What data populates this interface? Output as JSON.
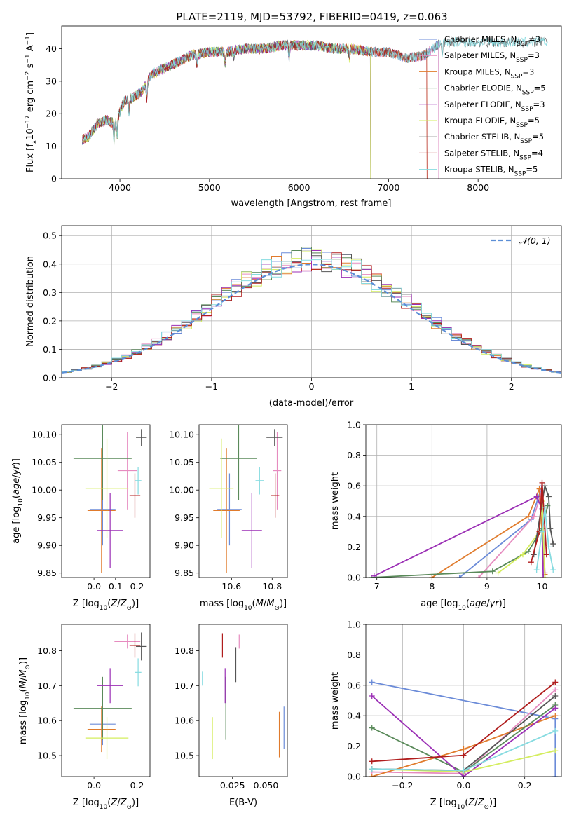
{
  "title": "PLATE=2119, MJD=53792, FIBERID=0419, z=0.063",
  "colors": {
    "Chabrier MILES": "#6b8bd8",
    "Salpeter MILES": "#e68bbf",
    "Kroupa MILES": "#e07b2c",
    "Chabrier ELODIE": "#5a8a5a",
    "Salpeter ELODIE": "#9b2fb5",
    "Kroupa ELODIE": "#d4ed5e",
    "Chabrier STELIB": "#555555",
    "Salpeter STELIB": "#b01d1d",
    "Kroupa STELIB": "#86dbe0",
    "gauss": "#5b8ed6"
  },
  "chart_data": [
    {
      "id": "spectrum",
      "type": "line",
      "xlabel": "wavelength [Angstrom, rest frame]",
      "ylabel": "Flux [f_λ 10^-17 erg cm^-2 s^-1 A^-1]",
      "xlim": [
        3350,
        8930
      ],
      "ylim": [
        0,
        47
      ],
      "xticks": [
        4000,
        5000,
        6000,
        7000,
        8000
      ],
      "yticks": [
        0,
        10,
        20,
        30,
        40
      ],
      "legend_position": "right",
      "series": [
        {
          "name": "Chabrier MILES",
          "nssp": "3"
        },
        {
          "name": "Salpeter MILES",
          "nssp": "3"
        },
        {
          "name": "Kroupa MILES",
          "nssp": "3"
        },
        {
          "name": "Chabrier ELODIE",
          "nssp": "5"
        },
        {
          "name": "Salpeter ELODIE",
          "nssp": "3"
        },
        {
          "name": "Kroupa ELODIE",
          "nssp": "5"
        },
        {
          "name": "Chabrier STELIB",
          "nssp": "5"
        },
        {
          "name": "Salpeter STELIB",
          "nssp": "4"
        },
        {
          "name": "Kroupa STELIB",
          "nssp": "5"
        }
      ],
      "continuum": {
        "x": [
          3580,
          3650,
          3750,
          3850,
          3950,
          4050,
          4150,
          4250,
          4350,
          4500,
          4650,
          4800,
          5000,
          5200,
          5400,
          5600,
          5800,
          6000,
          6200,
          6400,
          6600,
          6800,
          7000,
          7200,
          7400,
          7500,
          7600
        ],
        "y": [
          12,
          13,
          17,
          18,
          17,
          24,
          25,
          27,
          32,
          34,
          36,
          38,
          39,
          39,
          40,
          40,
          41,
          41,
          41,
          40,
          40,
          39,
          39,
          37,
          38,
          40,
          42
        ]
      },
      "endpoints": {
        "Chabrier MILES": 7560,
        "Salpeter MILES": 7560,
        "Kroupa MILES": 7430,
        "Chabrier ELODIE": 6800,
        "Salpeter ELODIE": 6800,
        "Kroupa ELODIE": 6800,
        "Chabrier STELIB": 8780,
        "Salpeter STELIB": 7430,
        "Kroupa STELIB": 8780
      }
    },
    {
      "id": "residuals",
      "type": "histogram",
      "xlabel": "(data-model)/error",
      "ylabel": "Normed distribution",
      "xlim": [
        -2.5,
        2.5
      ],
      "ylim": [
        0,
        0.535
      ],
      "xticks": [
        -2,
        -1,
        0,
        1,
        2
      ],
      "yticks": [
        0.0,
        0.1,
        0.2,
        0.3,
        0.4,
        0.5
      ],
      "bin_width": 0.1,
      "grid": true,
      "legend": [
        {
          "label": "𝒩(0, 1)",
          "style": "dashed"
        }
      ],
      "legend_position": "top-right"
    },
    {
      "id": "age_vs_Z",
      "type": "errorbar",
      "xlabel": "Z [log10(Z/Z⊙)]",
      "ylabel": "age  [log10(age/yr)]",
      "xlim": [
        -0.15,
        0.26
      ],
      "ylim": [
        9.842,
        10.118
      ],
      "xticks": [
        0.0,
        0.1,
        0.2
      ],
      "yticks": [
        9.85,
        9.9,
        9.95,
        10.0,
        10.05,
        10.1
      ],
      "points": [
        {
          "series": "Chabrier MILES",
          "x": 0.04,
          "xerr": 0.06,
          "y": 9.965,
          "yerr": 0.065
        },
        {
          "series": "Salpeter MILES",
          "x": 0.155,
          "xerr": 0.045,
          "y": 10.035,
          "yerr": 0.07
        },
        {
          "series": "Kroupa MILES",
          "x": 0.035,
          "xerr": 0.065,
          "y": 9.963,
          "yerr": 0.113
        },
        {
          "series": "Chabrier ELODIE",
          "x": 0.04,
          "xerr": 0.135,
          "y": 10.057,
          "yerr": 0.075
        },
        {
          "series": "Salpeter ELODIE",
          "x": 0.075,
          "xerr": 0.06,
          "y": 9.927,
          "yerr": 0.068
        },
        {
          "series": "Kroupa ELODIE",
          "x": 0.06,
          "xerr": 0.1,
          "y": 10.003,
          "yerr": 0.09
        },
        {
          "series": "Chabrier STELIB",
          "x": 0.22,
          "xerr": 0.025,
          "y": 10.095,
          "yerr": 0.015
        },
        {
          "series": "Salpeter STELIB",
          "x": 0.19,
          "xerr": 0.025,
          "y": 9.99,
          "yerr": 0.04
        },
        {
          "series": "Kroupa STELIB",
          "x": 0.205,
          "xerr": 0.015,
          "y": 10.017,
          "yerr": 0.025
        }
      ]
    },
    {
      "id": "age_vs_mass",
      "type": "errorbar",
      "xlabel": "mass [log10(M/M⊙)]",
      "ylabel": "",
      "xlim": [
        10.44,
        10.875
      ],
      "ylim": [
        9.842,
        10.118
      ],
      "xticks": [
        10.6,
        10.8
      ],
      "yticks": [
        9.85,
        9.9,
        9.95,
        10.0,
        10.05,
        10.1
      ],
      "points": [
        {
          "series": "Chabrier MILES",
          "x": 10.59,
          "xerr": 0.06,
          "y": 9.965,
          "yerr": 0.065
        },
        {
          "series": "Salpeter MILES",
          "x": 10.825,
          "xerr": 0.02,
          "y": 10.035,
          "yerr": 0.07
        },
        {
          "series": "Kroupa MILES",
          "x": 10.575,
          "xerr": 0.065,
          "y": 9.963,
          "yerr": 0.113
        },
        {
          "series": "Chabrier ELODIE",
          "x": 10.635,
          "xerr": 0.09,
          "y": 10.057,
          "yerr": 0.075
        },
        {
          "series": "Salpeter ELODIE",
          "x": 10.7,
          "xerr": 0.05,
          "y": 9.927,
          "yerr": 0.068
        },
        {
          "series": "Kroupa ELODIE",
          "x": 10.55,
          "xerr": 0.06,
          "y": 10.003,
          "yerr": 0.09
        },
        {
          "series": "Chabrier STELIB",
          "x": 10.812,
          "xerr": 0.04,
          "y": 10.095,
          "yerr": 0.015
        },
        {
          "series": "Salpeter STELIB",
          "x": 10.815,
          "xerr": 0.02,
          "y": 9.99,
          "yerr": 0.04
        },
        {
          "series": "Kroupa STELIB",
          "x": 10.738,
          "xerr": 0.02,
          "y": 10.017,
          "yerr": 0.025
        }
      ]
    },
    {
      "id": "weight_vs_age",
      "type": "line",
      "xlabel": "age  [log10(age/yr)]",
      "ylabel": "mass weight",
      "xlim": [
        6.8,
        10.35
      ],
      "ylim": [
        0,
        1.0
      ],
      "xticks": [
        7,
        8,
        9,
        10
      ],
      "yticks": [
        0.0,
        0.2,
        0.4,
        0.6,
        0.8,
        1.0
      ],
      "grid": true,
      "series": [
        {
          "name": "Chabrier MILES",
          "x": [
            8.5,
            9.8,
            10.0,
            10.05
          ],
          "y": [
            0.0,
            0.38,
            0.6,
            0.02
          ]
        },
        {
          "name": "Salpeter MILES",
          "x": [
            8.85,
            9.85,
            10.0,
            10.05
          ],
          "y": [
            0.0,
            0.4,
            0.57,
            0.03
          ]
        },
        {
          "name": "Kroupa MILES",
          "x": [
            8.0,
            9.75,
            9.95,
            10.05
          ],
          "y": [
            0.0,
            0.4,
            0.58,
            0.02
          ]
        },
        {
          "name": "Chabrier ELODIE",
          "x": [
            6.9,
            9.1,
            9.75,
            10.0,
            10.1
          ],
          "y": [
            0.0,
            0.04,
            0.17,
            0.32,
            0.47
          ]
        },
        {
          "name": "Salpeter ELODIE",
          "x": [
            6.95,
            9.9,
            10.0,
            10.02
          ],
          "y": [
            0.01,
            0.53,
            0.45,
            0.0
          ]
        },
        {
          "name": "Kroupa ELODIE",
          "x": [
            9.2,
            9.65,
            9.95,
            10.0,
            10.05
          ],
          "y": [
            0.03,
            0.15,
            0.3,
            0.5,
            0.0
          ]
        },
        {
          "name": "Chabrier STELIB",
          "x": [
            9.85,
            10.05,
            10.12,
            10.15,
            10.2
          ],
          "y": [
            0.15,
            0.6,
            0.53,
            0.32,
            0.22
          ]
        },
        {
          "name": "Salpeter STELIB",
          "x": [
            9.8,
            9.95,
            10.0,
            10.08
          ],
          "y": [
            0.1,
            0.3,
            0.62,
            0.15
          ]
        },
        {
          "name": "Kroupa STELIB",
          "x": [
            9.9,
            10.0,
            10.05,
            10.12,
            10.2
          ],
          "y": [
            0.05,
            0.3,
            0.46,
            0.2,
            0.05
          ]
        }
      ]
    },
    {
      "id": "mass_vs_Z",
      "type": "errorbar",
      "xlabel": "Z [log10(Z/Z⊙)]",
      "ylabel": "mass [log10(M/M⊙)]",
      "xlim": [
        -0.15,
        0.26
      ],
      "ylim": [
        10.44,
        10.875
      ],
      "xticks": [
        0.0,
        0.2
      ],
      "yticks": [
        10.5,
        10.6,
        10.7,
        10.8
      ],
      "points": [
        {
          "series": "Chabrier MILES",
          "x": 0.04,
          "xerr": 0.06,
          "y": 10.59,
          "yerr": 0.06
        },
        {
          "series": "Salpeter MILES",
          "x": 0.155,
          "xerr": 0.06,
          "y": 10.826,
          "yerr": 0.02
        },
        {
          "series": "Kroupa MILES",
          "x": 0.035,
          "xerr": 0.065,
          "y": 10.575,
          "yerr": 0.065
        },
        {
          "series": "Chabrier ELODIE",
          "x": 0.04,
          "xerr": 0.135,
          "y": 10.635,
          "yerr": 0.09
        },
        {
          "series": "Salpeter ELODIE",
          "x": 0.075,
          "xerr": 0.06,
          "y": 10.7,
          "yerr": 0.05
        },
        {
          "series": "Kroupa ELODIE",
          "x": 0.06,
          "xerr": 0.1,
          "y": 10.55,
          "yerr": 0.06
        },
        {
          "series": "Chabrier STELIB",
          "x": 0.22,
          "xerr": 0.025,
          "y": 10.812,
          "yerr": 0.04
        },
        {
          "series": "Salpeter STELIB",
          "x": 0.19,
          "xerr": 0.025,
          "y": 10.815,
          "yerr": 0.035
        },
        {
          "series": "Kroupa STELIB",
          "x": 0.205,
          "xerr": 0.015,
          "y": 10.738,
          "yerr": 0.04
        }
      ]
    },
    {
      "id": "mass_vs_ebv",
      "type": "errorbar",
      "xlabel": "E(B-V)",
      "ylabel": "",
      "xlim": [
        0.0,
        0.066
      ],
      "ylim": [
        10.44,
        10.875
      ],
      "xticks": [
        0.025,
        0.05
      ],
      "yticks": [
        10.5,
        10.6,
        10.7,
        10.8
      ],
      "points": [
        {
          "series": "Chabrier MILES",
          "x": 0.0635,
          "y": 10.58,
          "yerr": 0.06
        },
        {
          "series": "Salpeter MILES",
          "x": 0.03,
          "y": 10.826,
          "yerr": 0.02
        },
        {
          "series": "Kroupa MILES",
          "x": 0.06,
          "y": 10.56,
          "yerr": 0.065
        },
        {
          "series": "Chabrier ELODIE",
          "x": 0.02,
          "y": 10.635,
          "yerr": 0.09
        },
        {
          "series": "Salpeter ELODIE",
          "x": 0.0195,
          "y": 10.7,
          "yerr": 0.05
        },
        {
          "series": "Kroupa ELODIE",
          "x": 0.01,
          "y": 10.55,
          "yerr": 0.06
        },
        {
          "series": "Chabrier STELIB",
          "x": 0.0275,
          "y": 10.76,
          "yerr": 0.05
        },
        {
          "series": "Salpeter STELIB",
          "x": 0.0175,
          "y": 10.815,
          "yerr": 0.035
        },
        {
          "series": "Kroupa STELIB",
          "x": 0.0025,
          "y": 10.72,
          "yerr": 0.02
        }
      ]
    },
    {
      "id": "weight_vs_Z",
      "type": "line",
      "xlabel": "Z [log10(Z/Z⊙)]",
      "ylabel": "mass weight",
      "xlim": [
        -0.32,
        0.32
      ],
      "ylim": [
        0,
        1.0
      ],
      "xticks": [
        -0.2,
        0.0,
        0.2
      ],
      "yticks": [
        0.0,
        0.2,
        0.4,
        0.6,
        0.8,
        1.0
      ],
      "grid": true,
      "series": [
        {
          "name": "Chabrier MILES",
          "x": [
            -0.3,
            0.3,
            0.3
          ],
          "y": [
            0.62,
            0.38,
            0.0
          ]
        },
        {
          "name": "Salpeter MILES",
          "x": [
            -0.3,
            0.0,
            0.3
          ],
          "y": [
            0.03,
            0.02,
            0.57
          ]
        },
        {
          "name": "Kroupa MILES",
          "x": [
            -0.3,
            0.0,
            0.3
          ],
          "y": [
            0.0,
            0.18,
            0.4
          ]
        },
        {
          "name": "Chabrier ELODIE",
          "x": [
            -0.3,
            0.0,
            0.3
          ],
          "y": [
            0.32,
            0.03,
            0.47
          ]
        },
        {
          "name": "Salpeter ELODIE",
          "x": [
            -0.3,
            0.0,
            0.3
          ],
          "y": [
            0.53,
            0.0,
            0.45
          ]
        },
        {
          "name": "Kroupa ELODIE",
          "x": [
            -0.3,
            0.0,
            0.3
          ],
          "y": [
            0.05,
            0.03,
            0.17
          ]
        },
        {
          "name": "Chabrier STELIB",
          "x": [
            -0.3,
            0.0,
            0.3
          ],
          "y": [
            0.05,
            0.04,
            0.53
          ]
        },
        {
          "name": "Salpeter STELIB",
          "x": [
            -0.3,
            0.0,
            0.3
          ],
          "y": [
            0.1,
            0.14,
            0.62
          ]
        },
        {
          "name": "Kroupa STELIB",
          "x": [
            -0.3,
            0.0,
            0.3
          ],
          "y": [
            0.05,
            0.04,
            0.3
          ]
        }
      ]
    }
  ]
}
